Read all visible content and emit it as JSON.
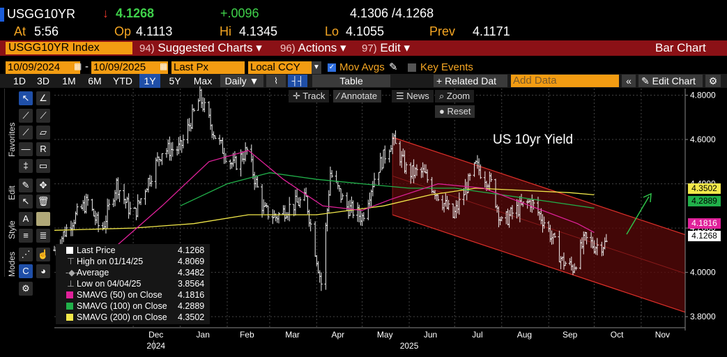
{
  "quote": {
    "ticker": "USGG10YR",
    "direction_glyph": "↓",
    "last": "4.1268",
    "change": "+.0096",
    "bid_ask": "4.1306 /4.1268",
    "at_label": "At",
    "at_value": "5:56",
    "open_label": "Op",
    "open_value": "4.1113",
    "high_label": "Hi",
    "high_value": "4.1345",
    "low_label": "Lo",
    "low_value": "4.1055",
    "prev_label": "Prev",
    "prev_value": "4.1171"
  },
  "header": {
    "security": "USGG10YR Index",
    "menu_suggested": {
      "num": "94)",
      "label": "Suggested Charts ▾"
    },
    "menu_actions": {
      "num": "96)",
      "label": "Actions ▾"
    },
    "menu_edit": {
      "num": "97)",
      "label": "Edit ▾"
    },
    "chart_type": "Bar Chart"
  },
  "range": {
    "start": "10/09/2024",
    "sep": "-",
    "end": "10/09/2025",
    "field": "Last Px",
    "currency": "Local CCY",
    "mov_avgs": "Mov Avgs",
    "key_events": "Key Events"
  },
  "tabs": {
    "periods": [
      "1D",
      "3D",
      "1M",
      "6M",
      "YTD",
      "1Y",
      "5Y",
      "Max"
    ],
    "selected": "1Y",
    "frequency": "Daily ▼",
    "table": "Table",
    "related": "+ Related Dat",
    "add_data": "Add Data",
    "edit_chart": "Edit Chart"
  },
  "palette": {
    "favorites": "Favorites",
    "edit": "Edit",
    "style": "Style",
    "modes": "Modes"
  },
  "overlay": {
    "track": "Track",
    "annotate": "Annotate",
    "news": "News",
    "zoom": "Zoom",
    "reset": "Reset"
  },
  "annotation_text": "US 10yr Yield",
  "legend": {
    "rows": [
      {
        "name": "Last Price",
        "value": "4.1268",
        "color": "#ffffff"
      },
      {
        "name": "High on 01/14/25",
        "value": "4.8069",
        "color": ""
      },
      {
        "name": "Average",
        "value": "4.3482",
        "color": ""
      },
      {
        "name": "Low on 04/04/25",
        "value": "3.8564",
        "color": ""
      },
      {
        "name": "SMAVG (50)  on Close",
        "value": "4.1816",
        "color": "#e0219a"
      },
      {
        "name": "SMAVG (100)  on Close",
        "value": "4.2889",
        "color": "#21b04a"
      },
      {
        "name": "SMAVG (200)  on Close",
        "value": "4.3502",
        "color": "#f2e84a"
      }
    ]
  },
  "price_tags": [
    {
      "value": "4.3502",
      "color": "#f2e84a",
      "text_color": "#000"
    },
    {
      "value": "4.2889",
      "color": "#21b04a",
      "text_color": "#000"
    },
    {
      "value": "4.1816",
      "color": "#e0219a",
      "text_color": "#fff"
    },
    {
      "value": "4.1268",
      "color": "#ffffff",
      "text_color": "#000"
    }
  ],
  "chart_data": {
    "type": "bar",
    "ylim": [
      3.75,
      4.83
    ],
    "y_ticks": [
      "4.8000",
      "4.6000",
      "4.4000",
      "4.2000",
      "4.0000",
      "3.8000"
    ],
    "x_tick_labels": [
      "Dec",
      "Jan",
      "Feb",
      "Mar",
      "Apr",
      "May",
      "Jun",
      "Jul",
      "Aug",
      "Sep",
      "Oct",
      "Nov"
    ],
    "year_labels": [
      "2024",
      "2025"
    ],
    "close_path": [
      [
        "2024-10-10",
        4.1
      ],
      [
        "2024-10-20",
        4.22
      ],
      [
        "2024-11-01",
        4.32
      ],
      [
        "2024-11-10",
        4.18
      ],
      [
        "2024-11-20",
        4.4
      ],
      [
        "2024-12-01",
        4.25
      ],
      [
        "2024-12-10",
        4.4
      ],
      [
        "2024-12-20",
        4.55
      ],
      [
        "2025-01-01",
        4.56
      ],
      [
        "2025-01-14",
        4.79
      ],
      [
        "2025-01-25",
        4.6
      ],
      [
        "2025-02-05",
        4.48
      ],
      [
        "2025-02-14",
        4.55
      ],
      [
        "2025-02-25",
        4.28
      ],
      [
        "2025-03-05",
        4.25
      ],
      [
        "2025-03-15",
        4.3
      ],
      [
        "2025-03-25",
        4.33
      ],
      [
        "2025-04-04",
        3.95
      ],
      [
        "2025-04-10",
        4.45
      ],
      [
        "2025-04-20",
        4.3
      ],
      [
        "2025-05-01",
        4.25
      ],
      [
        "2025-05-10",
        4.45
      ],
      [
        "2025-05-21",
        4.6
      ],
      [
        "2025-05-31",
        4.45
      ],
      [
        "2025-06-10",
        4.45
      ],
      [
        "2025-06-20",
        4.35
      ],
      [
        "2025-06-30",
        4.25
      ],
      [
        "2025-07-15",
        4.48
      ],
      [
        "2025-07-25",
        4.4
      ],
      [
        "2025-08-01",
        4.22
      ],
      [
        "2025-08-10",
        4.28
      ],
      [
        "2025-08-20",
        4.32
      ],
      [
        "2025-08-30",
        4.22
      ],
      [
        "2025-09-10",
        4.05
      ],
      [
        "2025-09-17",
        4.02
      ],
      [
        "2025-09-25",
        4.15
      ],
      [
        "2025-10-01",
        4.12
      ],
      [
        "2025-10-09",
        4.13
      ]
    ],
    "sma50": [
      [
        "2024-11-20",
        4.12
      ],
      [
        "2024-12-20",
        4.3
      ],
      [
        "2025-01-20",
        4.5
      ],
      [
        "2025-02-15",
        4.55
      ],
      [
        "2025-03-10",
        4.42
      ],
      [
        "2025-04-05",
        4.3
      ],
      [
        "2025-05-01",
        4.28
      ],
      [
        "2025-05-20",
        4.33
      ],
      [
        "2025-06-20",
        4.4
      ],
      [
        "2025-07-20",
        4.38
      ],
      [
        "2025-08-20",
        4.3
      ],
      [
        "2025-09-20",
        4.22
      ],
      [
        "2025-10-01",
        4.18
      ]
    ],
    "sma100": [
      [
        "2025-01-01",
        4.3
      ],
      [
        "2025-02-01",
        4.4
      ],
      [
        "2025-03-01",
        4.45
      ],
      [
        "2025-04-01",
        4.42
      ],
      [
        "2025-05-01",
        4.4
      ],
      [
        "2025-06-01",
        4.38
      ],
      [
        "2025-07-01",
        4.38
      ],
      [
        "2025-08-01",
        4.35
      ],
      [
        "2025-09-01",
        4.32
      ],
      [
        "2025-10-01",
        4.29
      ]
    ],
    "sma200": [
      [
        "2024-10-10",
        4.19
      ],
      [
        "2024-12-01",
        4.2
      ],
      [
        "2025-01-10",
        4.22
      ],
      [
        "2025-02-15",
        4.26
      ],
      [
        "2025-04-01",
        4.26
      ],
      [
        "2025-05-15",
        4.3
      ],
      [
        "2025-06-15",
        4.35
      ],
      [
        "2025-07-15",
        4.38
      ],
      [
        "2025-08-15",
        4.37
      ],
      [
        "2025-09-15",
        4.36
      ],
      [
        "2025-10-01",
        4.35
      ]
    ],
    "channel": {
      "upper": [
        [
          "2025-05-21",
          4.61
        ],
        [
          "2025-11-30",
          4.17
        ]
      ],
      "lower": [
        [
          "2025-05-21",
          4.26
        ],
        [
          "2025-11-30",
          3.82
        ]
      ]
    }
  }
}
